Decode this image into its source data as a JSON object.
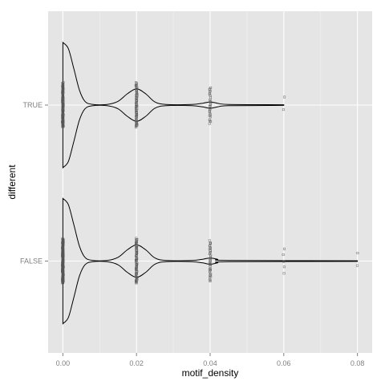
{
  "chart_data": {
    "type": "violin",
    "orientation": "horizontal",
    "xlabel": "motif_density",
    "ylabel": "different",
    "xlim": [
      -0.004,
      0.084
    ],
    "x_ticks": [
      {
        "value": 0.0,
        "label": "0.00"
      },
      {
        "value": 0.02,
        "label": "0.02"
      },
      {
        "value": 0.04,
        "label": "0.04"
      },
      {
        "value": 0.06,
        "label": "0.06"
      },
      {
        "value": 0.08,
        "label": "0.08"
      }
    ],
    "categories": [
      "TRUE",
      "FALSE"
    ],
    "grid": true,
    "colors": {
      "panel_background": "#e5e5e5",
      "grid_major": "#ffffff",
      "grid_minor": "#f2f2f2",
      "violin_outline": "#000000",
      "point": "#555555"
    },
    "series": [
      {
        "category": "TRUE",
        "x_max": 0.06,
        "density_profile": [
          [
            0.0,
            1.0
          ],
          [
            0.0015,
            0.9
          ],
          [
            0.003,
            0.58
          ],
          [
            0.0045,
            0.24
          ],
          [
            0.006,
            0.06
          ],
          [
            0.008,
            0.012
          ],
          [
            0.012,
            0.01
          ],
          [
            0.015,
            0.06
          ],
          [
            0.0175,
            0.18
          ],
          [
            0.02,
            0.26
          ],
          [
            0.0225,
            0.18
          ],
          [
            0.025,
            0.05
          ],
          [
            0.028,
            0.01
          ],
          [
            0.035,
            0.01
          ],
          [
            0.038,
            0.03
          ],
          [
            0.04,
            0.05
          ],
          [
            0.042,
            0.03
          ],
          [
            0.045,
            0.01
          ],
          [
            0.06,
            0.005
          ]
        ],
        "points": [
          {
            "x": 0.0,
            "spread": 0.55,
            "count": 120
          },
          {
            "x": 0.02,
            "spread": 0.55,
            "count": 70
          },
          {
            "x": 0.04,
            "spread": 0.45,
            "count": 28
          },
          {
            "x": 0.06,
            "spread": 0.25,
            "count": 2
          }
        ]
      },
      {
        "category": "FALSE",
        "x_max": 0.08,
        "density_profile": [
          [
            0.0,
            1.0
          ],
          [
            0.0015,
            0.9
          ],
          [
            0.003,
            0.58
          ],
          [
            0.0045,
            0.24
          ],
          [
            0.006,
            0.06
          ],
          [
            0.008,
            0.012
          ],
          [
            0.012,
            0.01
          ],
          [
            0.015,
            0.06
          ],
          [
            0.0175,
            0.18
          ],
          [
            0.02,
            0.26
          ],
          [
            0.0225,
            0.18
          ],
          [
            0.025,
            0.05
          ],
          [
            0.028,
            0.01
          ],
          [
            0.035,
            0.01
          ],
          [
            0.038,
            0.03
          ],
          [
            0.04,
            0.05
          ],
          [
            0.042,
            0.03
          ],
          [
            0.045,
            0.01
          ],
          [
            0.08,
            0.005
          ]
        ],
        "points": [
          {
            "x": 0.0,
            "spread": 0.55,
            "count": 180
          },
          {
            "x": 0.02,
            "spread": 0.55,
            "count": 80
          },
          {
            "x": 0.04,
            "spread": 0.5,
            "count": 40
          },
          {
            "x": 0.06,
            "spread": 0.3,
            "count": 5
          },
          {
            "x": 0.08,
            "spread": 0.25,
            "count": 2
          }
        ]
      }
    ]
  }
}
